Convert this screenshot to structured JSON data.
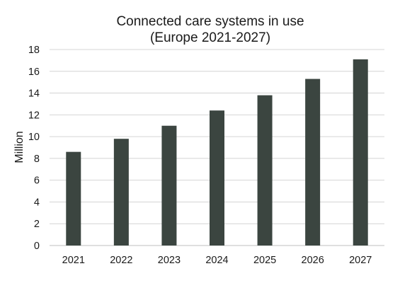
{
  "chart_data": {
    "type": "bar",
    "title_lines": [
      "Connected care systems in use",
      "(Europe 2021-2027)"
    ],
    "xlabel": "",
    "ylabel": "Million",
    "categories": [
      "2021",
      "2022",
      "2023",
      "2024",
      "2025",
      "2026",
      "2027"
    ],
    "values": [
      8.6,
      9.8,
      11.0,
      12.4,
      13.8,
      15.3,
      17.1
    ],
    "ylim": [
      0,
      18
    ],
    "yticks": [
      0,
      2,
      4,
      6,
      8,
      10,
      12,
      14,
      16,
      18
    ],
    "grid": true,
    "legend": "none",
    "bar_color": "#3b4540"
  }
}
